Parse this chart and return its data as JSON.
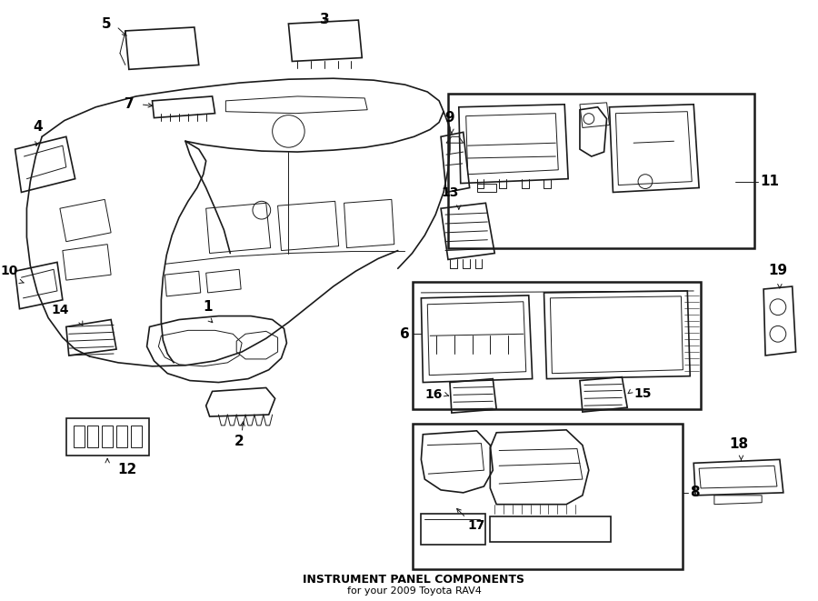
{
  "title": "INSTRUMENT PANEL COMPONENTS",
  "subtitle": "for your 2009 Toyota RAV4",
  "background_color": "#ffffff",
  "fig_width": 9.0,
  "fig_height": 6.61,
  "dpi": 100
}
